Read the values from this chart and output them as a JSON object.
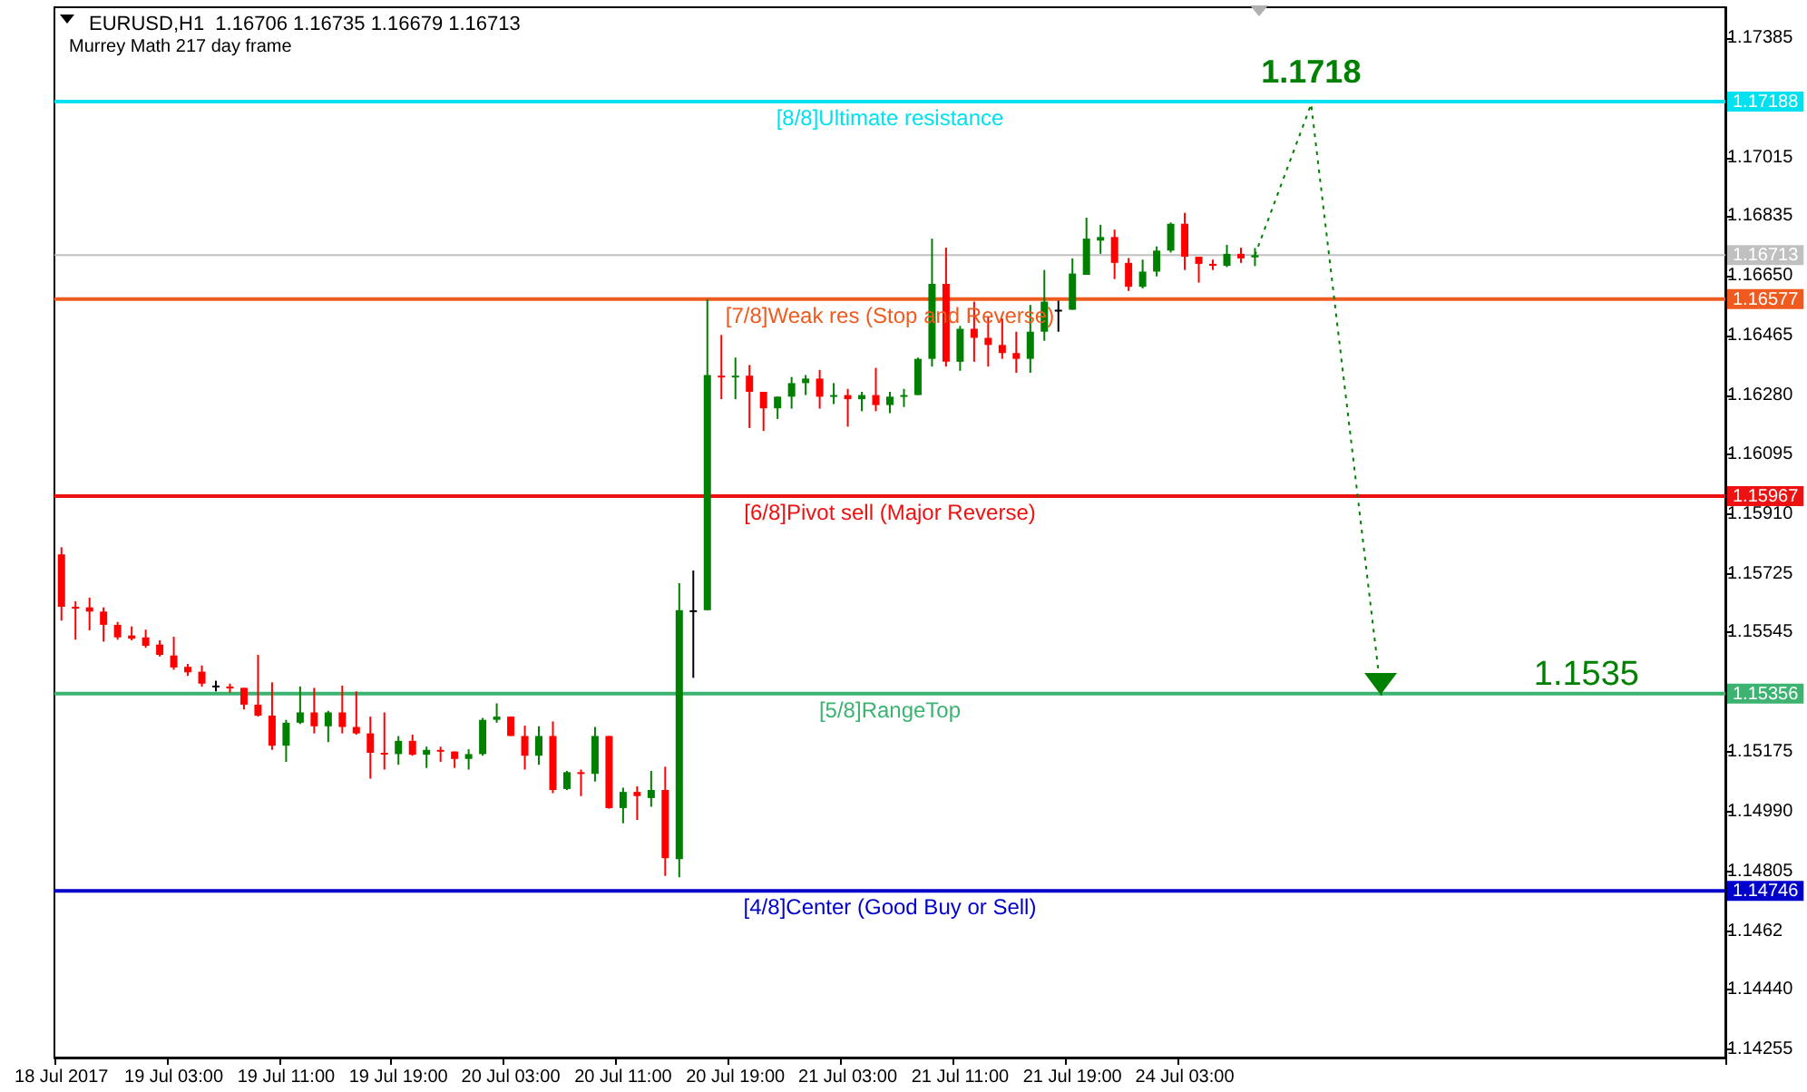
{
  "chart_data": {
    "type": "candlestick",
    "title": "EURUSD,H1  1.16706 1.16735 1.16679 1.16713",
    "subtitle": "Murrey Math 217 day frame",
    "categories": [
      "18 Jul 2017",
      null,
      null,
      null,
      null,
      null,
      null,
      null,
      "19 Jul 03:00",
      null,
      null,
      null,
      null,
      null,
      null,
      null,
      "19 Jul 11:00",
      null,
      null,
      null,
      null,
      null,
      null,
      null,
      "19 Jul 19:00",
      null,
      null,
      null,
      null,
      null,
      null,
      null,
      "20 Jul 03:00",
      null,
      null,
      null,
      null,
      null,
      null,
      null,
      "20 Jul 11:00",
      null,
      null,
      null,
      null,
      null,
      null,
      null,
      "20 Jul 19:00",
      null,
      null,
      null,
      null,
      null,
      null,
      null,
      "21 Jul 03:00",
      null,
      null,
      null,
      null,
      null,
      null,
      null,
      "21 Jul 11:00",
      null,
      null,
      null,
      null,
      null,
      null,
      null,
      "21 Jul 19:00",
      null,
      null,
      null,
      null,
      null,
      null,
      null,
      "24 Jul 03:00",
      null,
      null,
      null,
      null,
      null,
      null,
      null,
      null,
      null,
      null,
      null,
      null,
      null,
      null,
      null,
      null,
      null,
      null,
      null,
      null,
      null,
      null,
      null,
      null,
      null,
      null,
      null,
      null,
      null,
      null,
      null,
      null,
      null,
      null,
      null,
      null,
      null,
      null
    ],
    "ylim": [
      1.1423,
      1.1748
    ],
    "yticks": [
      1.17385,
      1.17188,
      1.17015,
      1.16713,
      1.16577,
      1.15967,
      1.15356,
      1.14746,
      1.16835,
      {
        "value": 1.1665,
        "label": "1.16650"
      },
      1.16465,
      {
        "value": 1.1628,
        "label": "1.16280"
      },
      1.16095,
      {
        "value": 1.1591,
        "label": "1.15910"
      },
      1.15725,
      1.15545,
      1.15175,
      {
        "value": 1.1499,
        "label": "1.14990"
      },
      1.14805,
      1.1462,
      {
        "value": 1.1444,
        "label": "1.14440"
      },
      1.14255
    ],
    "grid": false,
    "annotations": [
      "1.1535"
    ],
    "series": [
      {
        "ohlc": [
          [
            1.15787,
            1.15809,
            1.15582,
            1.15625
          ],
          [
            1.15625,
            1.15642,
            1.15523,
            1.15619
          ],
          [
            1.15623,
            1.15653,
            1.15552,
            1.1561
          ],
          [
            1.1561,
            1.15623,
            1.15517,
            1.15569
          ],
          [
            1.15569,
            1.15578,
            1.15523,
            1.1553
          ],
          [
            1.15536,
            1.15564,
            1.15521,
            1.15526
          ],
          [
            1.1553,
            1.15554,
            1.15498,
            1.15504
          ],
          [
            1.15508,
            1.15521,
            1.15471,
            1.15476
          ],
          [
            1.15474,
            1.15532,
            1.1543,
            1.15437
          ],
          [
            1.15439,
            1.15448,
            1.15411,
            1.15422
          ],
          [
            1.15424,
            1.15443,
            1.15378,
            1.15387
          ],
          [
            1.15381,
            1.15396,
            1.15363,
            1.15381
          ],
          [
            1.15378,
            1.15387,
            1.15359,
            1.15372
          ],
          [
            1.15374,
            1.15374,
            1.15307,
            1.15322
          ],
          [
            1.15322,
            1.15476,
            1.15285,
            1.15288
          ],
          [
            1.15288,
            1.15391,
            1.15182,
            1.15195
          ],
          [
            1.15195,
            1.15275,
            1.15145,
            1.15266
          ],
          [
            1.15266,
            1.15378,
            1.15262,
            1.15298
          ],
          [
            1.15298,
            1.15374,
            1.15233,
            1.15255
          ],
          [
            1.15255,
            1.15303,
            1.15206,
            1.15298
          ],
          [
            1.15298,
            1.15381,
            1.15233,
            1.15253
          ],
          [
            1.15253,
            1.15363,
            1.15229,
            1.15233
          ],
          [
            1.15233,
            1.15285,
            1.15093,
            1.15173
          ],
          [
            1.15173,
            1.15298,
            1.15121,
            1.15169
          ],
          [
            1.15169,
            1.15225,
            1.15136,
            1.1521
          ],
          [
            1.1521,
            1.15229,
            1.15164,
            1.15167
          ],
          [
            1.15167,
            1.15192,
            1.15126,
            1.15182
          ],
          [
            1.15182,
            1.15192,
            1.15145,
            1.15177
          ],
          [
            1.15177,
            1.15177,
            1.15126,
            1.15154
          ],
          [
            1.15154,
            1.15184,
            1.15121,
            1.15169
          ],
          [
            1.15169,
            1.15281,
            1.15164,
            1.15275
          ],
          [
            1.15275,
            1.15326,
            1.15266,
            1.15285
          ],
          [
            1.15285,
            1.15285,
            1.15225,
            1.15225
          ],
          [
            1.15225,
            1.15257,
            1.15121,
            1.15164
          ],
          [
            1.15164,
            1.15255,
            1.15136,
            1.15225
          ],
          [
            1.15225,
            1.1527,
            1.15048,
            1.15058
          ],
          [
            1.15061,
            1.15117,
            1.15058,
            1.15113
          ],
          [
            1.15113,
            1.15121,
            1.15039,
            1.15108
          ],
          [
            1.15108,
            1.15253,
            1.15084,
            1.15225
          ],
          [
            1.15225,
            1.15225,
            1.15,
            1.15002
          ],
          [
            1.15002,
            1.15065,
            1.14955,
            1.15052
          ],
          [
            1.15052,
            1.15069,
            1.14965,
            1.15039
          ],
          [
            1.15033,
            1.15117,
            1.15006,
            1.15058
          ],
          [
            1.15058,
            1.1513,
            1.14792,
            1.14847
          ],
          [
            1.14844,
            1.15698,
            1.14788,
            1.15614
          ],
          [
            1.15614,
            1.15737,
            1.15405,
            1.15614
          ],
          [
            1.15614,
            1.16576,
            1.15614,
            1.16342
          ],
          [
            1.1634,
            1.16466,
            1.16267,
            1.16336
          ],
          [
            1.16336,
            1.16396,
            1.16267,
            1.1634
          ],
          [
            1.1634,
            1.16373,
            1.16178,
            1.1629
          ],
          [
            1.1629,
            1.1629,
            1.16169,
            1.16239
          ],
          [
            1.16239,
            1.16275,
            1.16206,
            1.16275
          ],
          [
            1.16275,
            1.16336,
            1.16238,
            1.16317
          ],
          [
            1.16317,
            1.16342,
            1.1628,
            1.16331
          ],
          [
            1.16331,
            1.16358,
            1.16238,
            1.16275
          ],
          [
            1.16275,
            1.16317,
            1.16252,
            1.1628
          ],
          [
            1.1628,
            1.16299,
            1.16182,
            1.16267
          ],
          [
            1.16267,
            1.1629,
            1.1623,
            1.1628
          ],
          [
            1.1628,
            1.16364,
            1.1623,
            1.16249
          ],
          [
            1.16249,
            1.1629,
            1.16224,
            1.16275
          ],
          [
            1.16275,
            1.16299,
            1.16243,
            1.1628
          ],
          [
            1.1628,
            1.16396,
            1.1628,
            1.16392
          ],
          [
            1.16392,
            1.16764,
            1.16368,
            1.16624
          ],
          [
            1.16624,
            1.16736,
            1.16368,
            1.16383
          ],
          [
            1.16383,
            1.16494,
            1.16355,
            1.16485
          ],
          [
            1.16485,
            1.16569,
            1.16383,
            1.16457
          ],
          [
            1.16457,
            1.16522,
            1.16368,
            1.16435
          ],
          [
            1.16435,
            1.16517,
            1.16392,
            1.1641
          ],
          [
            1.1641,
            1.16476,
            1.16349,
            1.16392
          ],
          [
            1.16392,
            1.16559,
            1.16349,
            1.16476
          ],
          [
            1.16476,
            1.16667,
            1.16448,
            1.16569
          ],
          [
            1.16544,
            1.16572,
            1.16476,
            1.16544
          ],
          [
            1.16544,
            1.16703,
            1.16544,
            1.16656
          ],
          [
            1.16652,
            1.16829,
            1.16652,
            1.16764
          ],
          [
            1.16758,
            1.16807,
            1.16717,
            1.16769
          ],
          [
            1.16769,
            1.16792,
            1.16639,
            1.16689
          ],
          [
            1.16689,
            1.16704,
            1.16602,
            1.16615
          ],
          [
            1.16615,
            1.16699,
            1.1661,
            1.16662
          ],
          [
            1.16662,
            1.1674,
            1.16647,
            1.16727
          ],
          [
            1.16727,
            1.16814,
            1.16721,
            1.1681
          ],
          [
            1.1681,
            1.16844,
            1.16667,
            1.16708
          ],
          [
            1.16708,
            1.16708,
            1.16628,
            1.16686
          ],
          [
            1.16686,
            1.16699,
            1.16667,
            1.1668
          ],
          [
            1.1668,
            1.16745,
            1.16676,
            1.16717
          ],
          [
            1.16717,
            1.16736,
            1.16689,
            1.16703
          ],
          [
            1.16706,
            1.16735,
            1.16679,
            1.16713
          ],
          null,
          null,
          null,
          null,
          null,
          null,
          null,
          null,
          null,
          null,
          null,
          null,
          null,
          null,
          null,
          null,
          null,
          null,
          null,
          null,
          null,
          null,
          null,
          null,
          null,
          null,
          null,
          null,
          null,
          null,
          null,
          null,
          null
        ],
        "colors": [
          "#ff0000",
          "#ff0000",
          "#ff0000",
          "#ff0000",
          "#ff0000",
          "#ff0000",
          "#ff0000",
          "#ff0000",
          "#ff0000",
          "#ff0000",
          "#ff0000",
          "#000000",
          "#ff0000",
          "#ff0000",
          "#ff0000",
          "#ff0000",
          "#008000",
          "#008000",
          "#ff0000",
          "#008000",
          "#ff0000",
          "#ff0000",
          "#ff0000",
          "#ff0000",
          "#008000",
          "#ff0000",
          "#008000",
          "#ff0000",
          "#ff0000",
          "#008000",
          "#008000",
          "#008000",
          "#ff0000",
          "#ff0000",
          "#008000",
          "#ff0000",
          "#008000",
          "#ff0000",
          "#008000",
          "#ff0000",
          "#008000",
          "#ff0000",
          "#008000",
          "#ff0000",
          "#008000",
          "#000000",
          "#008000",
          "#ff0000",
          "#008000",
          "#ff0000",
          "#ff0000",
          "#008000",
          "#008000",
          "#008000",
          "#ff0000",
          "#008000",
          "#ff0000",
          "#008000",
          "#ff0000",
          "#008000",
          "#008000",
          "#008000",
          "#008000",
          "#ff0000",
          "#008000",
          "#ff0000",
          "#ff0000",
          "#ff0000",
          "#ff0000",
          "#008000",
          "#008000",
          "#000000",
          "#008000",
          "#008000",
          "#008000",
          "#ff0000",
          "#ff0000",
          "#008000",
          "#008000",
          "#008000",
          "#ff0000",
          "#ff0000",
          "#ff0000",
          "#008000",
          "#ff0000",
          "#008000",
          null,
          null,
          null,
          null,
          null,
          null,
          null,
          null,
          null,
          null,
          null,
          null,
          null,
          null,
          null,
          null,
          null,
          null,
          null,
          null,
          null,
          null,
          null,
          null,
          null,
          null,
          null,
          null,
          null,
          null,
          null,
          null,
          null
        ]
      },
      {
        "type": "line",
        "color": "#008000",
        "line_style": "dotted",
        "values": [
          null,
          null,
          null,
          null,
          null,
          null,
          null,
          null,
          null,
          null,
          null,
          null,
          null,
          null,
          null,
          null,
          null,
          null,
          null,
          null,
          null,
          null,
          null,
          null,
          null,
          null,
          null,
          null,
          null,
          null,
          null,
          null,
          null,
          null,
          null,
          null,
          null,
          null,
          null,
          null,
          null,
          null,
          null,
          null,
          null,
          null,
          null,
          null,
          null,
          null,
          null,
          null,
          null,
          null,
          null,
          null,
          null,
          null,
          null,
          null,
          null,
          null,
          null,
          null,
          null,
          null,
          null,
          null,
          null,
          null,
          null,
          null,
          null,
          null,
          null,
          null,
          null,
          null,
          null,
          null,
          null,
          null,
          null,
          null,
          null,
          1.16713,
          null,
          null,
          null,
          1.1718,
          null,
          null,
          null,
          null,
          1.1535,
          null,
          null,
          null,
          null,
          null,
          null,
          null,
          null,
          null,
          null,
          null,
          null,
          null,
          null,
          null,
          null,
          null,
          null,
          null,
          null,
          null,
          null,
          null,
          null
        ],
        "value_labels": [
          null,
          null,
          null,
          null,
          null,
          null,
          null,
          null,
          null,
          null,
          null,
          null,
          null,
          null,
          null,
          null,
          null,
          null,
          null,
          null,
          null,
          null,
          null,
          null,
          null,
          null,
          null,
          null,
          null,
          null,
          null,
          null,
          null,
          null,
          null,
          null,
          null,
          null,
          null,
          null,
          null,
          null,
          null,
          null,
          null,
          null,
          null,
          null,
          null,
          null,
          null,
          null,
          null,
          null,
          null,
          null,
          null,
          null,
          null,
          null,
          null,
          null,
          null,
          null,
          null,
          null,
          null,
          null,
          null,
          null,
          null,
          null,
          null,
          null,
          null,
          null,
          null,
          null,
          null,
          null,
          null,
          null,
          null,
          null,
          null,
          null,
          null,
          null,
          null,
          "1.1718",
          null,
          null,
          null,
          null,
          null,
          null,
          null,
          null,
          null,
          null,
          null,
          null,
          null,
          null,
          null,
          null,
          null,
          null,
          null,
          null,
          null,
          null,
          null,
          null,
          null,
          null,
          null,
          null,
          null
        ]
      }
    ],
    "ref_lines": [
      {
        "axis": "y",
        "value": 1.17188,
        "label": "[8/8]Ultimate resistance",
        "color": "#00e1f0"
      },
      {
        "axis": "y",
        "value": 1.16713,
        "label": null,
        "color": "#c0c0c0"
      },
      {
        "axis": "y",
        "value": 1.16577,
        "label": "[7/8]Weak res (Stop and Reverse)",
        "color": "#f05a1e"
      },
      {
        "axis": "y",
        "value": 1.15967,
        "label": "[6/8]Pivot sell (Major Reverse)",
        "color": "#ee1111"
      },
      {
        "axis": "y",
        "value": 1.15356,
        "label": "[5/8]RangeTop",
        "color": "#3cb371"
      },
      {
        "axis": "y",
        "value": 1.14746,
        "label": "[4/8]Center (Good Buy or Sell)",
        "color": "#0000cd"
      }
    ]
  }
}
